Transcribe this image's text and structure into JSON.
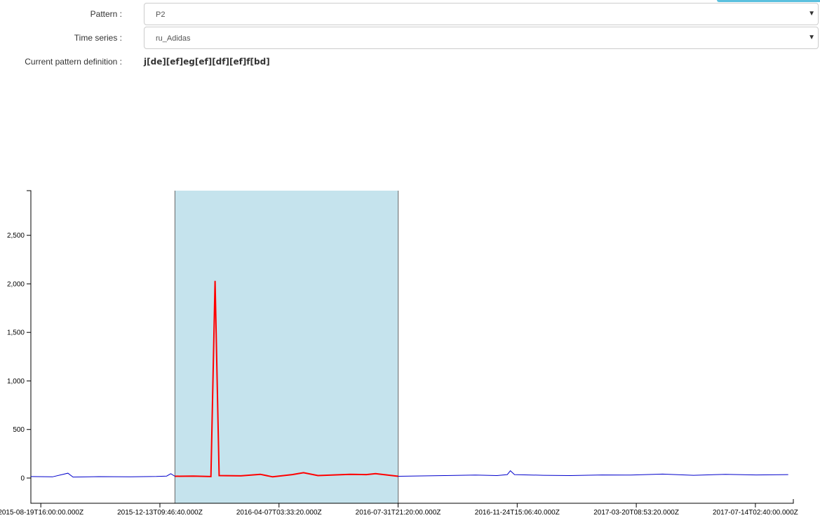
{
  "form": {
    "pattern": {
      "label": "Pattern :",
      "value": "P2"
    },
    "time_series": {
      "label": "Time series :",
      "value": "ru_Adidas"
    },
    "definition": {
      "label": "Current pattern definition :",
      "value": "j[de][ef]eg[ef][df][ef]f[bd]"
    }
  },
  "icons": {
    "dropdown": "caret-down-icon"
  },
  "chart_data": {
    "type": "line",
    "title": "",
    "xlabel": "",
    "ylabel": "",
    "x_ticks": [
      "2015-08-19T16:00:00.000Z",
      "2015-12-13T09:46:40.000Z",
      "2016-04-07T03:33:20.000Z",
      "2016-07-31T21:20:00.000Z",
      "2016-11-24T15:06:40.000Z",
      "2017-03-20T08:53:20.000Z",
      "2017-07-14T02:40:00.000Z"
    ],
    "x_range": [
      "2015-08-10",
      "2017-08-20"
    ],
    "y_ticks": [
      0,
      500,
      1000,
      1500,
      2000,
      2500
    ],
    "ylim": [
      -260,
      2960
    ],
    "highlight": {
      "start": "2015-12-28",
      "end": "2016-08-01",
      "color": "#c5e3ed"
    },
    "grid": false,
    "legend": "none",
    "colors": {
      "series": "#0000cc",
      "match": "#ff0000"
    },
    "series": [
      {
        "points": [
          [
            "2015-08-10",
            15
          ],
          [
            "2015-08-31",
            12
          ],
          [
            "2015-09-15",
            50
          ],
          [
            "2015-09-20",
            10
          ],
          [
            "2015-10-15",
            14
          ],
          [
            "2015-11-15",
            12
          ],
          [
            "2015-12-10",
            16
          ],
          [
            "2015-12-20",
            20
          ],
          [
            "2015-12-24",
            45
          ],
          [
            "2015-12-28",
            18
          ],
          [
            "2016-01-15",
            20
          ],
          [
            "2016-02-01",
            15
          ],
          [
            "2016-02-05",
            2030
          ],
          [
            "2016-02-09",
            25
          ],
          [
            "2016-03-01",
            22
          ],
          [
            "2016-03-20",
            38
          ],
          [
            "2016-04-01",
            12
          ],
          [
            "2016-04-20",
            35
          ],
          [
            "2016-05-01",
            55
          ],
          [
            "2016-05-15",
            25
          ],
          [
            "2016-06-15",
            38
          ],
          [
            "2016-07-01",
            35
          ],
          [
            "2016-07-10",
            45
          ],
          [
            "2016-08-01",
            18
          ],
          [
            "2016-09-15",
            25
          ],
          [
            "2016-10-15",
            30
          ],
          [
            "2016-11-05",
            25
          ],
          [
            "2016-11-15",
            35
          ],
          [
            "2016-11-18",
            75
          ],
          [
            "2016-11-22",
            35
          ],
          [
            "2016-12-20",
            28
          ],
          [
            "2017-01-15",
            25
          ],
          [
            "2017-02-15",
            32
          ],
          [
            "2017-03-15",
            30
          ],
          [
            "2017-04-15",
            40
          ],
          [
            "2017-05-15",
            28
          ],
          [
            "2017-06-15",
            38
          ],
          [
            "2017-07-15",
            32
          ],
          [
            "2017-08-15",
            35
          ]
        ]
      }
    ]
  }
}
